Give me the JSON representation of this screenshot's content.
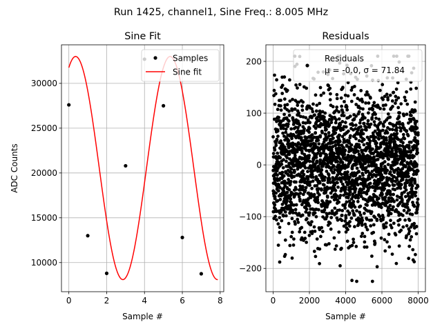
{
  "figure": {
    "suptitle": "Run 1425, channel1, Sine Freq.: 8.005 MHz"
  },
  "chart_data": [
    {
      "type": "scatter",
      "title": "Sine Fit",
      "xlabel": "Sample #",
      "ylabel": "ADC Counts",
      "xlim": [
        -0.39,
        8.19
      ],
      "ylim": [
        6750,
        34300
      ],
      "xticks": [
        "0",
        "2",
        "4",
        "6",
        "8"
      ],
      "xtick_values": [
        0,
        2,
        4,
        6,
        8
      ],
      "yticks": [
        "10000",
        "15000",
        "20000",
        "25000",
        "30000"
      ],
      "ytick_values": [
        10000,
        15000,
        20000,
        25000,
        30000
      ],
      "grid": true,
      "legend_position": "top-right",
      "series": [
        {
          "name": "Samples",
          "kind": "scatter",
          "color": "#000000",
          "x": [
            0,
            1,
            2,
            3,
            4,
            5,
            6,
            7
          ],
          "y": [
            27600,
            13000,
            8800,
            20800,
            32700,
            27500,
            12800,
            8750
          ]
        },
        {
          "name": "Sine fit",
          "kind": "line",
          "color": "#ff0000",
          "model": {
            "offset": 20550,
            "amplitude": 12450,
            "period_samples": 4.997,
            "phase_rad": 1.12,
            "x_start": 0,
            "x_end": 7.875
          }
        }
      ]
    },
    {
      "type": "scatter",
      "title": "Residuals",
      "xlabel": "Sample #",
      "xlim": [
        -400,
        8400
      ],
      "ylim": [
        -245,
        232
      ],
      "xticks": [
        "0",
        "2000",
        "4000",
        "6000",
        "8000"
      ],
      "xtick_values": [
        0,
        2000,
        4000,
        6000,
        8000
      ],
      "yticks": [
        "−200",
        "−100",
        "0",
        "100",
        "200"
      ],
      "ytick_values": [
        -200,
        -100,
        0,
        100,
        200
      ],
      "grid": true,
      "legend_position": "top-right",
      "series": [
        {
          "name": "Residuals",
          "kind": "scatter",
          "color": "#000000",
          "distribution": {
            "count": 8000,
            "mean": -0.0,
            "std": 71.84,
            "x_min": 0,
            "x_max": 7999
          }
        }
      ],
      "legend_stats": "μ = -0.0, σ = 71.84"
    }
  ]
}
